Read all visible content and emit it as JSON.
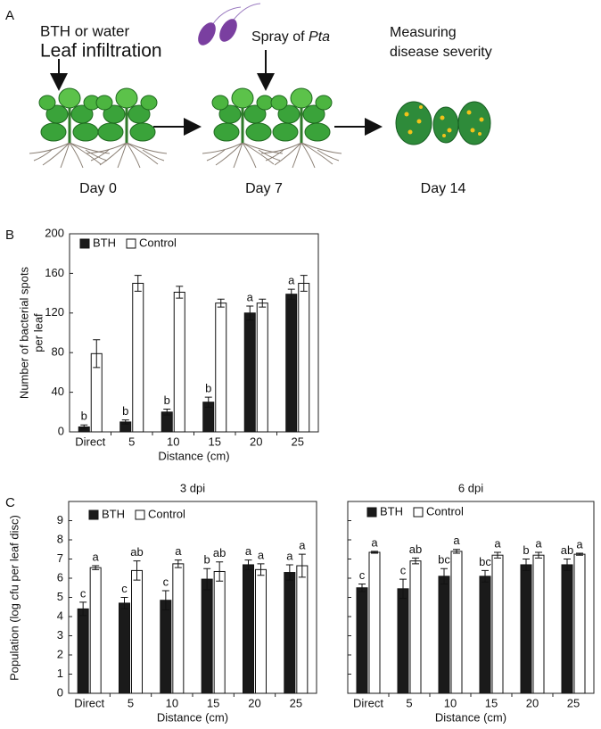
{
  "panel_labels": [
    "A",
    "B",
    "C"
  ],
  "diagram": {
    "step1_top": "BTH or water",
    "step1_bottom": "Leaf infiltration",
    "step2_prefix": "Spray of ",
    "step2_italic": "Pta",
    "step3_top": "Measuring",
    "step3_bottom": "disease severity",
    "days": [
      "Day 0",
      "Day 7",
      "Day 14"
    ]
  },
  "chart_data": [
    {
      "type": "bar",
      "categories": [
        "Direct",
        "5",
        "10",
        "15",
        "20",
        "25"
      ],
      "x_label": "Distance (cm)",
      "y_label": [
        "Number of bacterial spots",
        "per leaf"
      ],
      "ylim": [
        0,
        200
      ],
      "yticks": [
        0,
        40,
        80,
        120,
        160,
        200
      ],
      "show_ytick_labels": true,
      "series": [
        {
          "name": "BTH",
          "color": "#1a1a1a",
          "values": [
            5,
            10,
            20,
            30,
            120,
            139
          ],
          "errors": [
            2,
            2,
            3,
            5,
            7,
            5
          ],
          "letters": [
            "b",
            "b",
            "b",
            "b",
            "a",
            "a"
          ]
        },
        {
          "name": "Control",
          "color": "#ffffff",
          "values": [
            79,
            150,
            141,
            130,
            130,
            150
          ],
          "errors": [
            14,
            8,
            6,
            4,
            4,
            8
          ]
        }
      ]
    },
    {
      "type": "bar",
      "title": "3 dpi",
      "categories": [
        "Direct",
        "5",
        "10",
        "15",
        "20",
        "25"
      ],
      "x_label": "Distance (cm)",
      "y_label": "Population (log cfu per leaf disc)",
      "ylim": [
        0,
        10
      ],
      "yticks": [
        0,
        1,
        2,
        3,
        4,
        5,
        6,
        7,
        8,
        9
      ],
      "show_ytick_labels": true,
      "series": [
        {
          "name": "BTH",
          "color": "#1a1a1a",
          "values": [
            4.4,
            4.7,
            4.85,
            5.95,
            6.7,
            6.3
          ],
          "errors": [
            0.35,
            0.3,
            0.5,
            0.55,
            0.25,
            0.4
          ],
          "letters": [
            "c",
            "c",
            "c",
            "b",
            "a",
            "a"
          ]
        },
        {
          "name": "Control",
          "color": "#ffffff",
          "values": [
            6.55,
            6.4,
            6.75,
            6.35,
            6.45,
            6.65
          ],
          "errors": [
            0.1,
            0.5,
            0.2,
            0.5,
            0.3,
            0.6
          ],
          "letters": [
            "a",
            "ab",
            "a",
            "ab",
            "a",
            "a"
          ]
        }
      ]
    },
    {
      "type": "bar",
      "title": "6 dpi",
      "categories": [
        "Direct",
        "5",
        "10",
        "15",
        "20",
        "25"
      ],
      "x_label": "Distance (cm)",
      "ylim": [
        0,
        10
      ],
      "yticks": [
        0,
        1,
        2,
        3,
        4,
        5,
        6,
        7,
        8,
        9
      ],
      "show_ytick_labels": false,
      "series": [
        {
          "name": "BTH",
          "color": "#1a1a1a",
          "values": [
            5.5,
            5.45,
            6.1,
            6.1,
            6.7,
            6.7
          ],
          "errors": [
            0.2,
            0.5,
            0.4,
            0.3,
            0.3,
            0.3
          ],
          "letters": [
            "c",
            "c",
            "bc",
            "bc",
            "b",
            "ab"
          ]
        },
        {
          "name": "Control",
          "color": "#ffffff",
          "values": [
            7.35,
            6.9,
            7.4,
            7.2,
            7.2,
            7.25
          ],
          "errors": [
            0.05,
            0.15,
            0.1,
            0.15,
            0.15,
            0.05
          ],
          "letters": [
            "a",
            "ab",
            "a",
            "a",
            "a",
            "a"
          ]
        }
      ]
    }
  ]
}
